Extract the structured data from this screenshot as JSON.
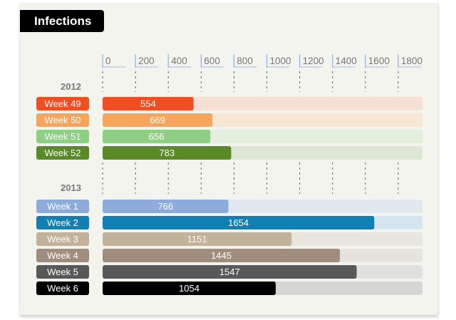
{
  "title": "Infections",
  "chart_data": {
    "type": "bar",
    "orientation": "horizontal",
    "title": "Infections",
    "xlim": [
      0,
      1950
    ],
    "ticks": [
      0,
      200,
      400,
      600,
      800,
      1000,
      1200,
      1400,
      1600,
      1800
    ],
    "grid": true,
    "groups": [
      {
        "label": "2012",
        "bars": [
          {
            "category": "Week 49",
            "value": 554,
            "color": "#f04e23",
            "track": "#f6dfd3"
          },
          {
            "category": "Week 50",
            "value": 669,
            "color": "#f7a45c",
            "track": "#f8e6d4"
          },
          {
            "category": "Week 51",
            "value": 656,
            "color": "#8fcf85",
            "track": "#e2efdd"
          },
          {
            "category": "Week 52",
            "value": 783,
            "color": "#5a8a25",
            "track": "#dee7d5"
          }
        ]
      },
      {
        "label": "2013",
        "bars": [
          {
            "category": "Week 1",
            "value": 766,
            "color": "#8dacdc",
            "track": "#e2e8ef"
          },
          {
            "category": "Week 2",
            "value": 1654,
            "color": "#0f7fb4",
            "track": "#d3e6ed"
          },
          {
            "category": "Week 3",
            "value": 1151,
            "color": "#c2b29a",
            "track": "#e9e6e0"
          },
          {
            "category": "Week 4",
            "value": 1445,
            "color": "#a18d7d",
            "track": "#e6e3de"
          },
          {
            "category": "Week 5",
            "value": 1547,
            "color": "#585858",
            "track": "#e0e0de"
          },
          {
            "category": "Week 6",
            "value": 1054,
            "color": "#000000",
            "track": "#d6d6d4"
          }
        ]
      }
    ]
  }
}
